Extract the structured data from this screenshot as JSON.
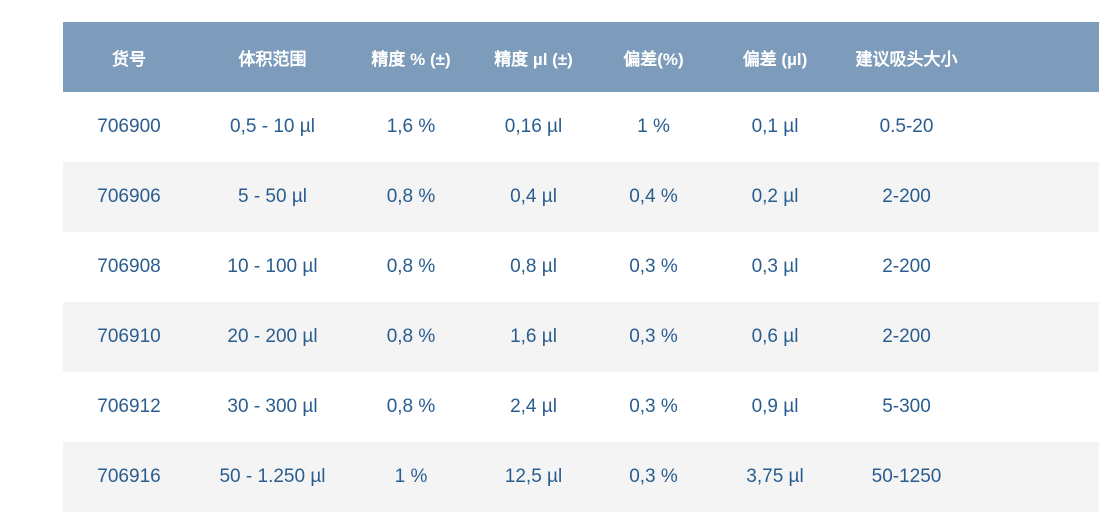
{
  "chart_data": {
    "type": "table",
    "title": "",
    "columns": [
      {
        "key": "item-number",
        "label": "货号"
      },
      {
        "key": "volume-range",
        "label": "体积范围"
      },
      {
        "key": "accuracy-percent",
        "label": "精度 % (±)"
      },
      {
        "key": "accuracy-ul",
        "label": "精度 µl (±)"
      },
      {
        "key": "deviation-percent",
        "label": "偏差(%)"
      },
      {
        "key": "deviation-ul",
        "label": "偏差 (µl)"
      },
      {
        "key": "recommended-tip-size",
        "label": "建议吸头大小"
      }
    ],
    "rows": [
      [
        "706900",
        "0,5 - 10 µl",
        "1,6 %",
        "0,16 µl",
        "1 %",
        "0,1 µl",
        "0.5-20"
      ],
      [
        "706906",
        "5 - 50 µl",
        "0,8 %",
        "0,4 µl",
        "0,4 %",
        "0,2 µl",
        "2-200"
      ],
      [
        "706908",
        "10 - 100 µl",
        "0,8 %",
        "0,8 µl",
        "0,3 %",
        "0,3 µl",
        "2-200"
      ],
      [
        "706910",
        "20 - 200 µl",
        "0,8 %",
        "1,6 µl",
        "0,3 %",
        "0,6 µl",
        "2-200"
      ],
      [
        "706912",
        "30 - 300 µl",
        "0,8 %",
        "2,4 µl",
        "0,3 %",
        "0,9 µl",
        "5-300"
      ],
      [
        "706916",
        "50 - 1.250 µl",
        "1 %",
        "12,5 µl",
        "0,3 %",
        "3,75 µl",
        "50-1250"
      ]
    ]
  },
  "colors": {
    "header_bg": "#7d9bba",
    "header_text": "#ffffff",
    "row_alt_bg": "#f4f4f4",
    "body_text": "#2a5d8f",
    "page_bg": "#ffffff"
  }
}
